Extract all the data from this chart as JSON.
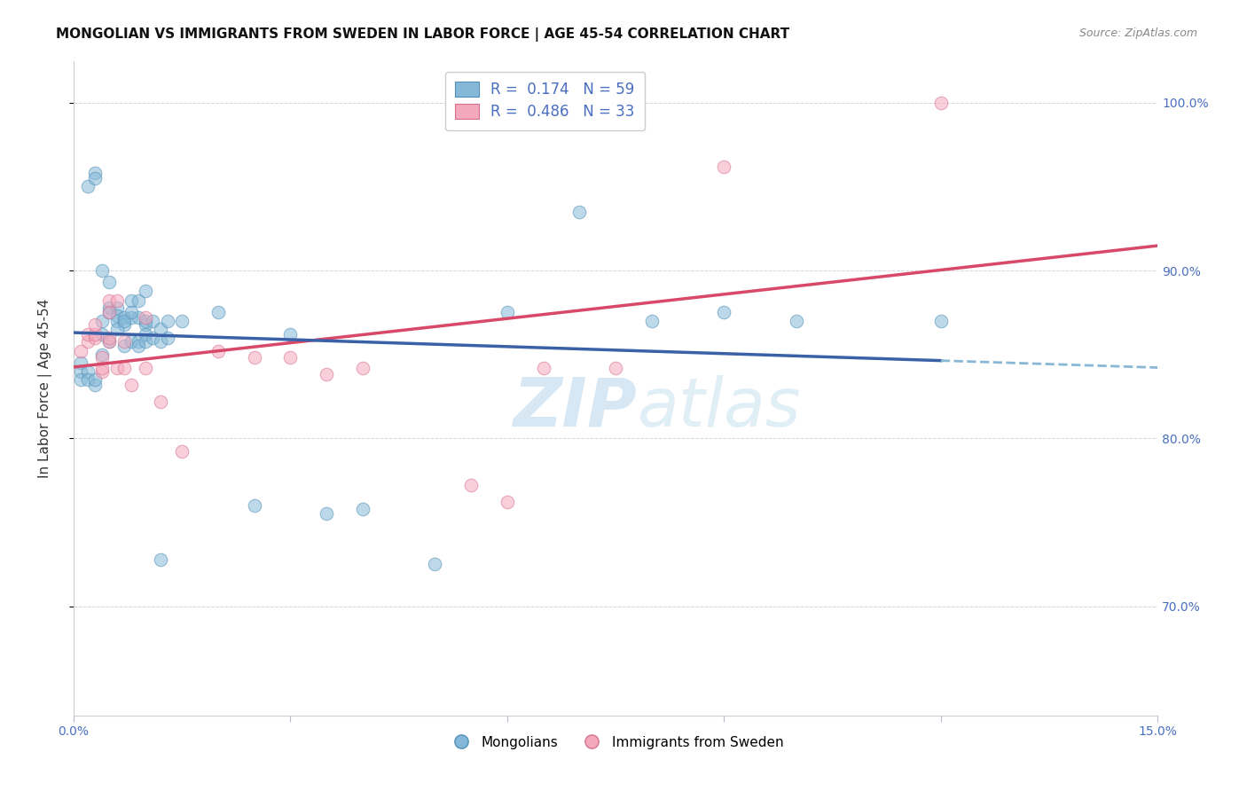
{
  "title": "MONGOLIAN VS IMMIGRANTS FROM SWEDEN IN LABOR FORCE | AGE 45-54 CORRELATION CHART",
  "source": "Source: ZipAtlas.com",
  "ylabel": "In Labor Force | Age 45-54",
  "xlim": [
    0.0,
    0.15
  ],
  "ylim": [
    0.635,
    1.025
  ],
  "yticks": [
    0.7,
    0.8,
    0.9,
    1.0
  ],
  "yticklabels": [
    "70.0%",
    "80.0%",
    "90.0%",
    "100.0%"
  ],
  "legend_line1": "R =  0.174   N = 59",
  "legend_line2": "R =  0.486   N = 33",
  "mongolian_x": [
    0.001,
    0.002,
    0.003,
    0.003,
    0.004,
    0.004,
    0.004,
    0.005,
    0.005,
    0.005,
    0.006,
    0.006,
    0.006,
    0.007,
    0.007,
    0.007,
    0.008,
    0.008,
    0.008,
    0.009,
    0.009,
    0.009,
    0.01,
    0.01,
    0.01,
    0.01,
    0.011,
    0.011,
    0.012,
    0.012,
    0.013,
    0.013,
    0.001,
    0.001,
    0.002,
    0.002,
    0.003,
    0.003,
    0.004,
    0.005,
    0.006,
    0.007,
    0.008,
    0.009,
    0.01,
    0.012,
    0.015,
    0.02,
    0.025,
    0.03,
    0.035,
    0.04,
    0.05,
    0.06,
    0.07,
    0.08,
    0.09,
    0.1,
    0.12
  ],
  "mongolian_y": [
    0.845,
    0.95,
    0.958,
    0.955,
    0.87,
    0.862,
    0.9,
    0.893,
    0.878,
    0.875,
    0.878,
    0.873,
    0.87,
    0.872,
    0.868,
    0.855,
    0.882,
    0.872,
    0.858,
    0.872,
    0.858,
    0.855,
    0.868,
    0.862,
    0.858,
    0.87,
    0.87,
    0.86,
    0.865,
    0.858,
    0.87,
    0.86,
    0.84,
    0.835,
    0.84,
    0.835,
    0.832,
    0.835,
    0.85,
    0.858,
    0.865,
    0.87,
    0.875,
    0.882,
    0.888,
    0.728,
    0.87,
    0.875,
    0.76,
    0.862,
    0.755,
    0.758,
    0.725,
    0.875,
    0.935,
    0.87,
    0.875,
    0.87,
    0.87
  ],
  "sweden_x": [
    0.001,
    0.002,
    0.002,
    0.003,
    0.003,
    0.003,
    0.004,
    0.004,
    0.004,
    0.005,
    0.005,
    0.005,
    0.005,
    0.006,
    0.006,
    0.007,
    0.007,
    0.008,
    0.01,
    0.01,
    0.012,
    0.015,
    0.02,
    0.025,
    0.03,
    0.035,
    0.04,
    0.055,
    0.06,
    0.065,
    0.075,
    0.09,
    0.12
  ],
  "sweden_y": [
    0.852,
    0.858,
    0.862,
    0.86,
    0.862,
    0.868,
    0.84,
    0.842,
    0.848,
    0.875,
    0.882,
    0.858,
    0.86,
    0.882,
    0.842,
    0.842,
    0.858,
    0.832,
    0.842,
    0.872,
    0.822,
    0.792,
    0.852,
    0.848,
    0.848,
    0.838,
    0.842,
    0.772,
    0.762,
    0.842,
    0.842,
    0.962,
    1.0
  ],
  "watermark_zip": "ZIP",
  "watermark_atlas": "atlas",
  "dot_size": 110,
  "dot_alpha": 0.55,
  "mongolian_color": "#85b8d8",
  "mongolian_edge": "#5090b8",
  "sweden_color": "#f4a8bc",
  "sweden_edge": "#d87090",
  "line_blue": "#3a60a8",
  "line_pink": "#d84868",
  "line_dash_color": "#88b8d5",
  "background": "#ffffff",
  "grid_color": "#c8c8d5",
  "title_fontsize": 11,
  "label_fontsize": 11,
  "tick_fontsize": 10,
  "legend_fontsize": 12,
  "watermark_fontsize": 55,
  "watermark_color_zip": "#b8d5ec",
  "watermark_color_atlas": "#c8e0f0",
  "watermark_alpha": 0.55,
  "tick_color": "#4a6fc0"
}
